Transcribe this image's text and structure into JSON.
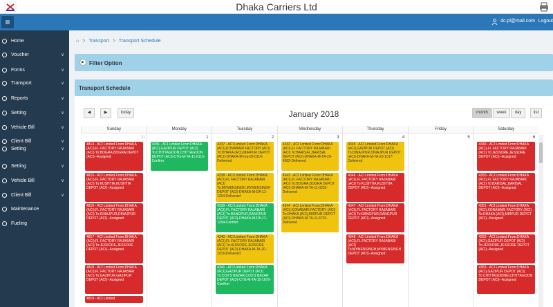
{
  "header": {
    "title": "Dhaka Carriers Ltd",
    "user_email": "dc.pl@mail.com",
    "logout_label": "Logout"
  },
  "sidebar": [
    {
      "label": "Home",
      "chevron": false
    },
    {
      "label": "Voucher",
      "chevron": true
    },
    {
      "label": "Forms",
      "chevron": true
    },
    {
      "label": "Transport",
      "chevron": true
    },
    {
      "label": "Reports",
      "chevron": true
    },
    {
      "label": "Setting",
      "chevron": true
    },
    {
      "label": "Vehicle Bill",
      "chevron": true
    },
    {
      "label": "Client Bill",
      "chevron": true
    },
    {
      "label": "Setting",
      "chevron": true
    },
    {
      "label": "Setting",
      "chevron": true
    },
    {
      "label": "Vehicle Bill",
      "chevron": true
    },
    {
      "label": "Client Bill",
      "chevron": true
    },
    {
      "label": "Maintenance",
      "chevron": false
    },
    {
      "label": "Fueling",
      "chevron": false
    }
  ],
  "breadcrumb": [
    "Transport",
    "Transport Schedule"
  ],
  "filter_label": "Filter Option",
  "schedule_label": "Transport Schedule",
  "calendar": {
    "today_label": "today",
    "month_title": "January 2018",
    "view_buttons": [
      "month",
      "week",
      "day",
      "list"
    ],
    "active_view": "month",
    "weekdays": [
      "Sunday",
      "Monday",
      "Tuesday",
      "Wednesday",
      "Thursday",
      "Friday",
      "Saturday"
    ],
    "day_numbers": [
      "31",
      "1",
      "2",
      "3",
      "4",
      "5",
      "6"
    ],
    "colors": {
      "assigned": "#d72a2a",
      "delivered": "#f0c30f",
      "confirm": "#1fb861"
    },
    "events": [
      {
        "day": 0,
        "color": "red",
        "text": "4814 - ACI Limited From:DHAKA (ACI),FL FACTORY RAJABARI (ACI) To:BOGRA,BOGRA DEPOT (ACI)--Assigned"
      },
      {
        "day": 0,
        "color": "red",
        "text": "4815 - ACI Limited From:DHAKA (ACI),FL FACTORY RAJABARI (ACI) To:KUSHTIA,KUSHTIA DEPOT (ACI)--Assigned"
      },
      {
        "day": 0,
        "color": "red",
        "text": "4816 - ACI Limited From:DHAKA (ACI),FL FACTORY RAJABARI (ACI) To:DINAJPUR,DINAJPUR DEPOT (ACI)--Assigned"
      },
      {
        "day": 0,
        "color": "red",
        "text": "4817 - ACI Limited From:DHAKA (ACI),FL FACTORY RAJABARI (ACI) To:JESSORE,JESSORE DEPOT (ACI)--Assigned"
      },
      {
        "day": 0,
        "color": "red",
        "text": "4818 - ACI Limited From:DHAKA (ACI),FL FACTORY RAJABARI (ACI) To:GAZIPUR,GAZIPUR DEPOT (ACI)--Assigned"
      },
      {
        "day": 0,
        "color": "red",
        "text": "4819 - ACI Limited"
      },
      {
        "day": 1,
        "color": "green",
        "text": "4336 - ACI Limited From:DHAKA (ACI),GAZIPUR DEPOT (ACI) To:CHITTAGOON,CHITTAGOON DEPOT (ACI)-CTG-M-TA-11-6116-Confirm"
      },
      {
        "day": 2,
        "color": "yellow",
        "text": "4337 - ACI Limited From:DHAKA (ACI),KONABARI FACTORY (ACI) To:DHAKA (ACI),MIRPUR DEPOT (ACI)-DHAKA-M-ma-05-0114-Delivered"
      },
      {
        "day": 2,
        "color": "yellow",
        "text": "4338 - ACI Limited From:DHAKA (ACI),FL FACTORY RAJABARI (ACI) To:MYMENSINGH,MYMENSINGH DEPOT (ACI)-DHAKA-M-DA-11-1204-Delivered"
      },
      {
        "day": 2,
        "color": "green",
        "text": "4339 - ACI Limited From:DHAKA (ACI),FL FACTORY RAJABARI (ACI) To:RANGPUR,RANGPUR DEPOT (ACI)-DHAKA-M-DA-11-1204-Confirm"
      },
      {
        "day": 2,
        "color": "yellow",
        "text": "4340 - ACI Limited From:DHAKA (ACI),FL FACTORY RAJABARI (ACI) To:JESSORE,JESSORE DEPOT (ACI)-DHAKA-M-TA-20-1016-Delivered"
      },
      {
        "day": 2,
        "color": "green",
        "text": "4341 - ACI Limited From:DHAKA (ACI),GAZIPUR DEPOT (ACI) To:COX'S BAZAR,COX'S BAZAR DEPOT (ACI)-CTG-M-TA-15-1679-Confirm"
      },
      {
        "day": 3,
        "color": "yellow",
        "text": "4342 - ACI Limited From:DHAKA (ACI),FL FACTORY RAJABARI (ACI) To:BARISAL,BARISAL DEPOT (ACI)-DHAKA-M-TA-29-4582-Delivered"
      },
      {
        "day": 3,
        "color": "yellow",
        "text": "4343 - ACI Limited From:DHAKA (ACI),FL FACTORY RAJABARI (ACI) To:BOGRA,BOGRA DEPOT (ACI)-DHAKA-M-TA-11-0252-Delivered"
      },
      {
        "day": 3,
        "color": "yellow",
        "text": "4344 - ACI Limited From:DHAKA (ACI),KONABARI FACTORY (ACI) To:DHAKA (ACI),MIRPUR DEPOT (ACI)-DHAKA-M-TA-11-6791-Delivered"
      },
      {
        "day": 4,
        "color": "yellow",
        "text": "4345 - ACI Limited From:DHAKA (ACI),GAZIPUR DEPOT (ACI) To:DINAJPUR,DINAJPUR DEPOT (ACI)-DHAKA-M-TA-20-1017-Delivered"
      },
      {
        "day": 4,
        "color": "red",
        "text": "4346 - ACI Limited From:DHAKA (ACI),FL FACTORY RAJABARI (ACI) To:KUSHTIA,KUSHTIA DEPOT (ACI)--Assigned"
      },
      {
        "day": 4,
        "color": "red",
        "text": "4347 - ACI Limited From:DHAKA (ACI),FL FACTORY RAJABARI (ACI) To:RANGPUR,RANGPUR DEPOT (ACI)--Assigned"
      },
      {
        "day": 4,
        "color": "red",
        "text": "4348 - ACI Limited From:DHAKA (ACI),FL FACTORY RAJABARI (ACI) To:MYMENSINGH,MYMENSINGH DEPOT (ACI)--Assigned"
      },
      {
        "day": 6,
        "color": "red",
        "text": "4349 - ACI Limited From:DHAKA (ACI),FL FACTORY RAJABARI (ACI) To:JESSORE,JESSORE DEPOT (ACI)--Assigned"
      },
      {
        "day": 6,
        "color": "red",
        "text": "4350 - ACI Limited From:DHAKA (ACI),FL FACTORY RAJABARI (ACI) To:BARISAL,BARISAL DEPOT (ACI)--Assigned"
      },
      {
        "day": 6,
        "color": "red",
        "text": "4351 - ACI Limited From:DHAKA (ACI),KONABARI FACTORY (ACI) To:DHAKA (ACI),MIRPUR DEPOT (ACI)--Assigned"
      },
      {
        "day": 6,
        "color": "red",
        "text": "4352 - ACI Limited From:DHAKA (ACI),GAZIPUR DEPOT (ACI) To:JESSORE,JESSORE DEPOT (ACI)--Assigned"
      },
      {
        "day": 6,
        "color": "red",
        "text": "4353 - ACI Limited From:DHAKA (ACI),GAZIPUR DEPOT (ACI) To:CHITTAGOONG,CHITTAGOON DEPOT (ACI)--Assigned"
      }
    ]
  }
}
